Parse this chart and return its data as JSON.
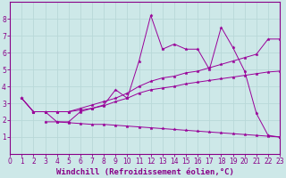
{
  "title": "",
  "xlabel": "Windchill (Refroidissement éolien,°C)",
  "ylabel": "",
  "background_color": "#cde8e8",
  "grid_color": "#aacccc",
  "line_color": "#990099",
  "marker": "*",
  "xlim": [
    0,
    23
  ],
  "ylim": [
    0,
    9
  ],
  "xticks": [
    0,
    1,
    2,
    3,
    4,
    5,
    6,
    7,
    8,
    9,
    10,
    11,
    12,
    13,
    14,
    15,
    16,
    17,
    18,
    19,
    20,
    21,
    22,
    23
  ],
  "yticks": [
    1,
    2,
    3,
    4,
    5,
    6,
    7,
    8
  ],
  "series": [
    [
      3.3,
      2.5,
      2.5,
      1.9,
      1.9,
      2.5,
      2.7,
      2.9,
      3.8,
      3.3,
      5.5,
      8.2,
      6.2,
      6.5,
      6.2,
      6.2,
      5.0,
      7.5,
      6.3,
      4.9,
      2.4,
      1.1,
      1.0
    ],
    [
      3.3,
      2.5,
      2.5,
      2.5,
      2.5,
      2.7,
      2.9,
      3.1,
      3.3,
      3.6,
      4.0,
      4.3,
      4.5,
      4.6,
      4.8,
      4.9,
      5.1,
      5.3,
      5.5,
      5.7,
      5.9,
      6.8,
      6.8
    ],
    [
      3.3,
      2.5,
      2.5,
      2.5,
      2.5,
      2.6,
      2.7,
      2.85,
      3.1,
      3.3,
      3.6,
      3.8,
      3.9,
      4.0,
      4.15,
      4.25,
      4.35,
      4.45,
      4.55,
      4.65,
      4.75,
      4.85,
      4.9
    ],
    [
      1.9,
      1.9,
      1.85,
      1.8,
      1.75,
      1.75,
      1.7,
      1.65,
      1.6,
      1.55,
      1.5,
      1.45,
      1.4,
      1.35,
      1.3,
      1.25,
      1.2,
      1.15,
      1.1,
      1.05,
      1.0
    ]
  ],
  "series_x": [
    [
      1,
      2,
      3,
      4,
      5,
      6,
      7,
      8,
      9,
      10,
      11,
      12,
      13,
      14,
      15,
      16,
      17,
      18,
      19,
      20,
      21,
      22,
      23
    ],
    [
      1,
      2,
      3,
      4,
      5,
      6,
      7,
      8,
      9,
      10,
      11,
      12,
      13,
      14,
      15,
      16,
      17,
      18,
      19,
      20,
      21,
      22,
      23
    ],
    [
      1,
      2,
      3,
      4,
      5,
      6,
      7,
      8,
      9,
      10,
      11,
      12,
      13,
      14,
      15,
      16,
      17,
      18,
      19,
      20,
      21,
      22,
      23
    ],
    [
      3,
      4,
      5,
      6,
      7,
      8,
      9,
      10,
      11,
      12,
      13,
      14,
      15,
      16,
      17,
      18,
      19,
      20,
      21,
      22,
      23
    ]
  ],
  "tick_fontsize": 5.5,
  "label_fontsize": 6.5
}
